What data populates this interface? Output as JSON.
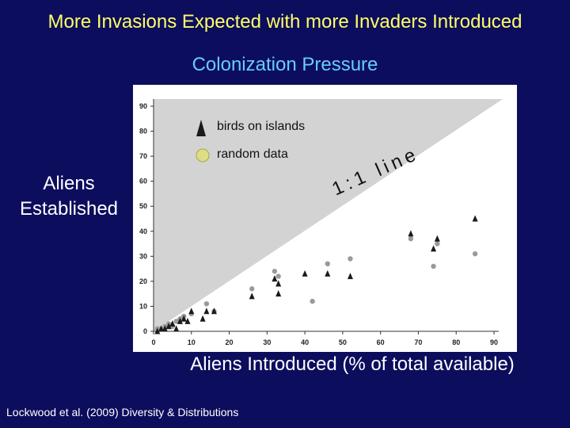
{
  "slide": {
    "title": "More Invasions Expected with more Invaders Introduced",
    "subtitle": "Colonization Pressure",
    "ylabel_line1": "Aliens",
    "ylabel_line2": "Established",
    "xlabel": "Aliens Introduced (% of total available)",
    "citation": "Lockwood et al. (2009) Diversity & Distributions",
    "colors": {
      "background": "#0d0d5e",
      "title": "#ffff66",
      "subtitle": "#66ccff",
      "triangle_region": "#d3d3d3",
      "bird_marker": "#1a1a1a",
      "random_marker": "#9a9a9a"
    }
  },
  "chart_data": {
    "type": "scatter",
    "xlim": [
      0,
      90
    ],
    "ylim": [
      0,
      90
    ],
    "xticks": [
      0,
      10,
      20,
      30,
      40,
      50,
      60,
      70,
      80,
      90
    ],
    "yticks": [
      0,
      10,
      20,
      30,
      40,
      50,
      60,
      70,
      80,
      90
    ],
    "xlabel": "Aliens Introduced (% of total available)",
    "ylabel": "Aliens Established",
    "one_to_one_label": "1:1 line",
    "legend": {
      "birds": "birds on islands",
      "random": "random data",
      "placement": "top-left"
    },
    "series": [
      {
        "name": "random data",
        "marker": "circle",
        "points": [
          [
            1,
            1
          ],
          [
            2,
            1
          ],
          [
            3,
            2
          ],
          [
            4,
            3
          ],
          [
            5,
            2
          ],
          [
            6,
            4
          ],
          [
            7,
            5
          ],
          [
            8,
            6
          ],
          [
            10,
            7
          ],
          [
            14,
            11
          ],
          [
            16,
            8
          ],
          [
            26,
            17
          ],
          [
            32,
            24
          ],
          [
            33,
            22
          ],
          [
            42,
            12
          ],
          [
            46,
            27
          ],
          [
            52,
            29
          ],
          [
            68,
            37
          ],
          [
            74,
            26
          ],
          [
            75,
            35
          ],
          [
            85,
            31
          ]
        ]
      },
      {
        "name": "birds on islands",
        "marker": "triangle",
        "points": [
          [
            1,
            0
          ],
          [
            2,
            1
          ],
          [
            3,
            1
          ],
          [
            4,
            2
          ],
          [
            5,
            3
          ],
          [
            6,
            1
          ],
          [
            7,
            4
          ],
          [
            8,
            5
          ],
          [
            9,
            4
          ],
          [
            10,
            8
          ],
          [
            13,
            5
          ],
          [
            14,
            8
          ],
          [
            16,
            8
          ],
          [
            26,
            14
          ],
          [
            32,
            21
          ],
          [
            33,
            15
          ],
          [
            33,
            19
          ],
          [
            40,
            23
          ],
          [
            46,
            23
          ],
          [
            52,
            22
          ],
          [
            68,
            39
          ],
          [
            74,
            33
          ],
          [
            75,
            37
          ],
          [
            85,
            45
          ]
        ]
      }
    ]
  }
}
